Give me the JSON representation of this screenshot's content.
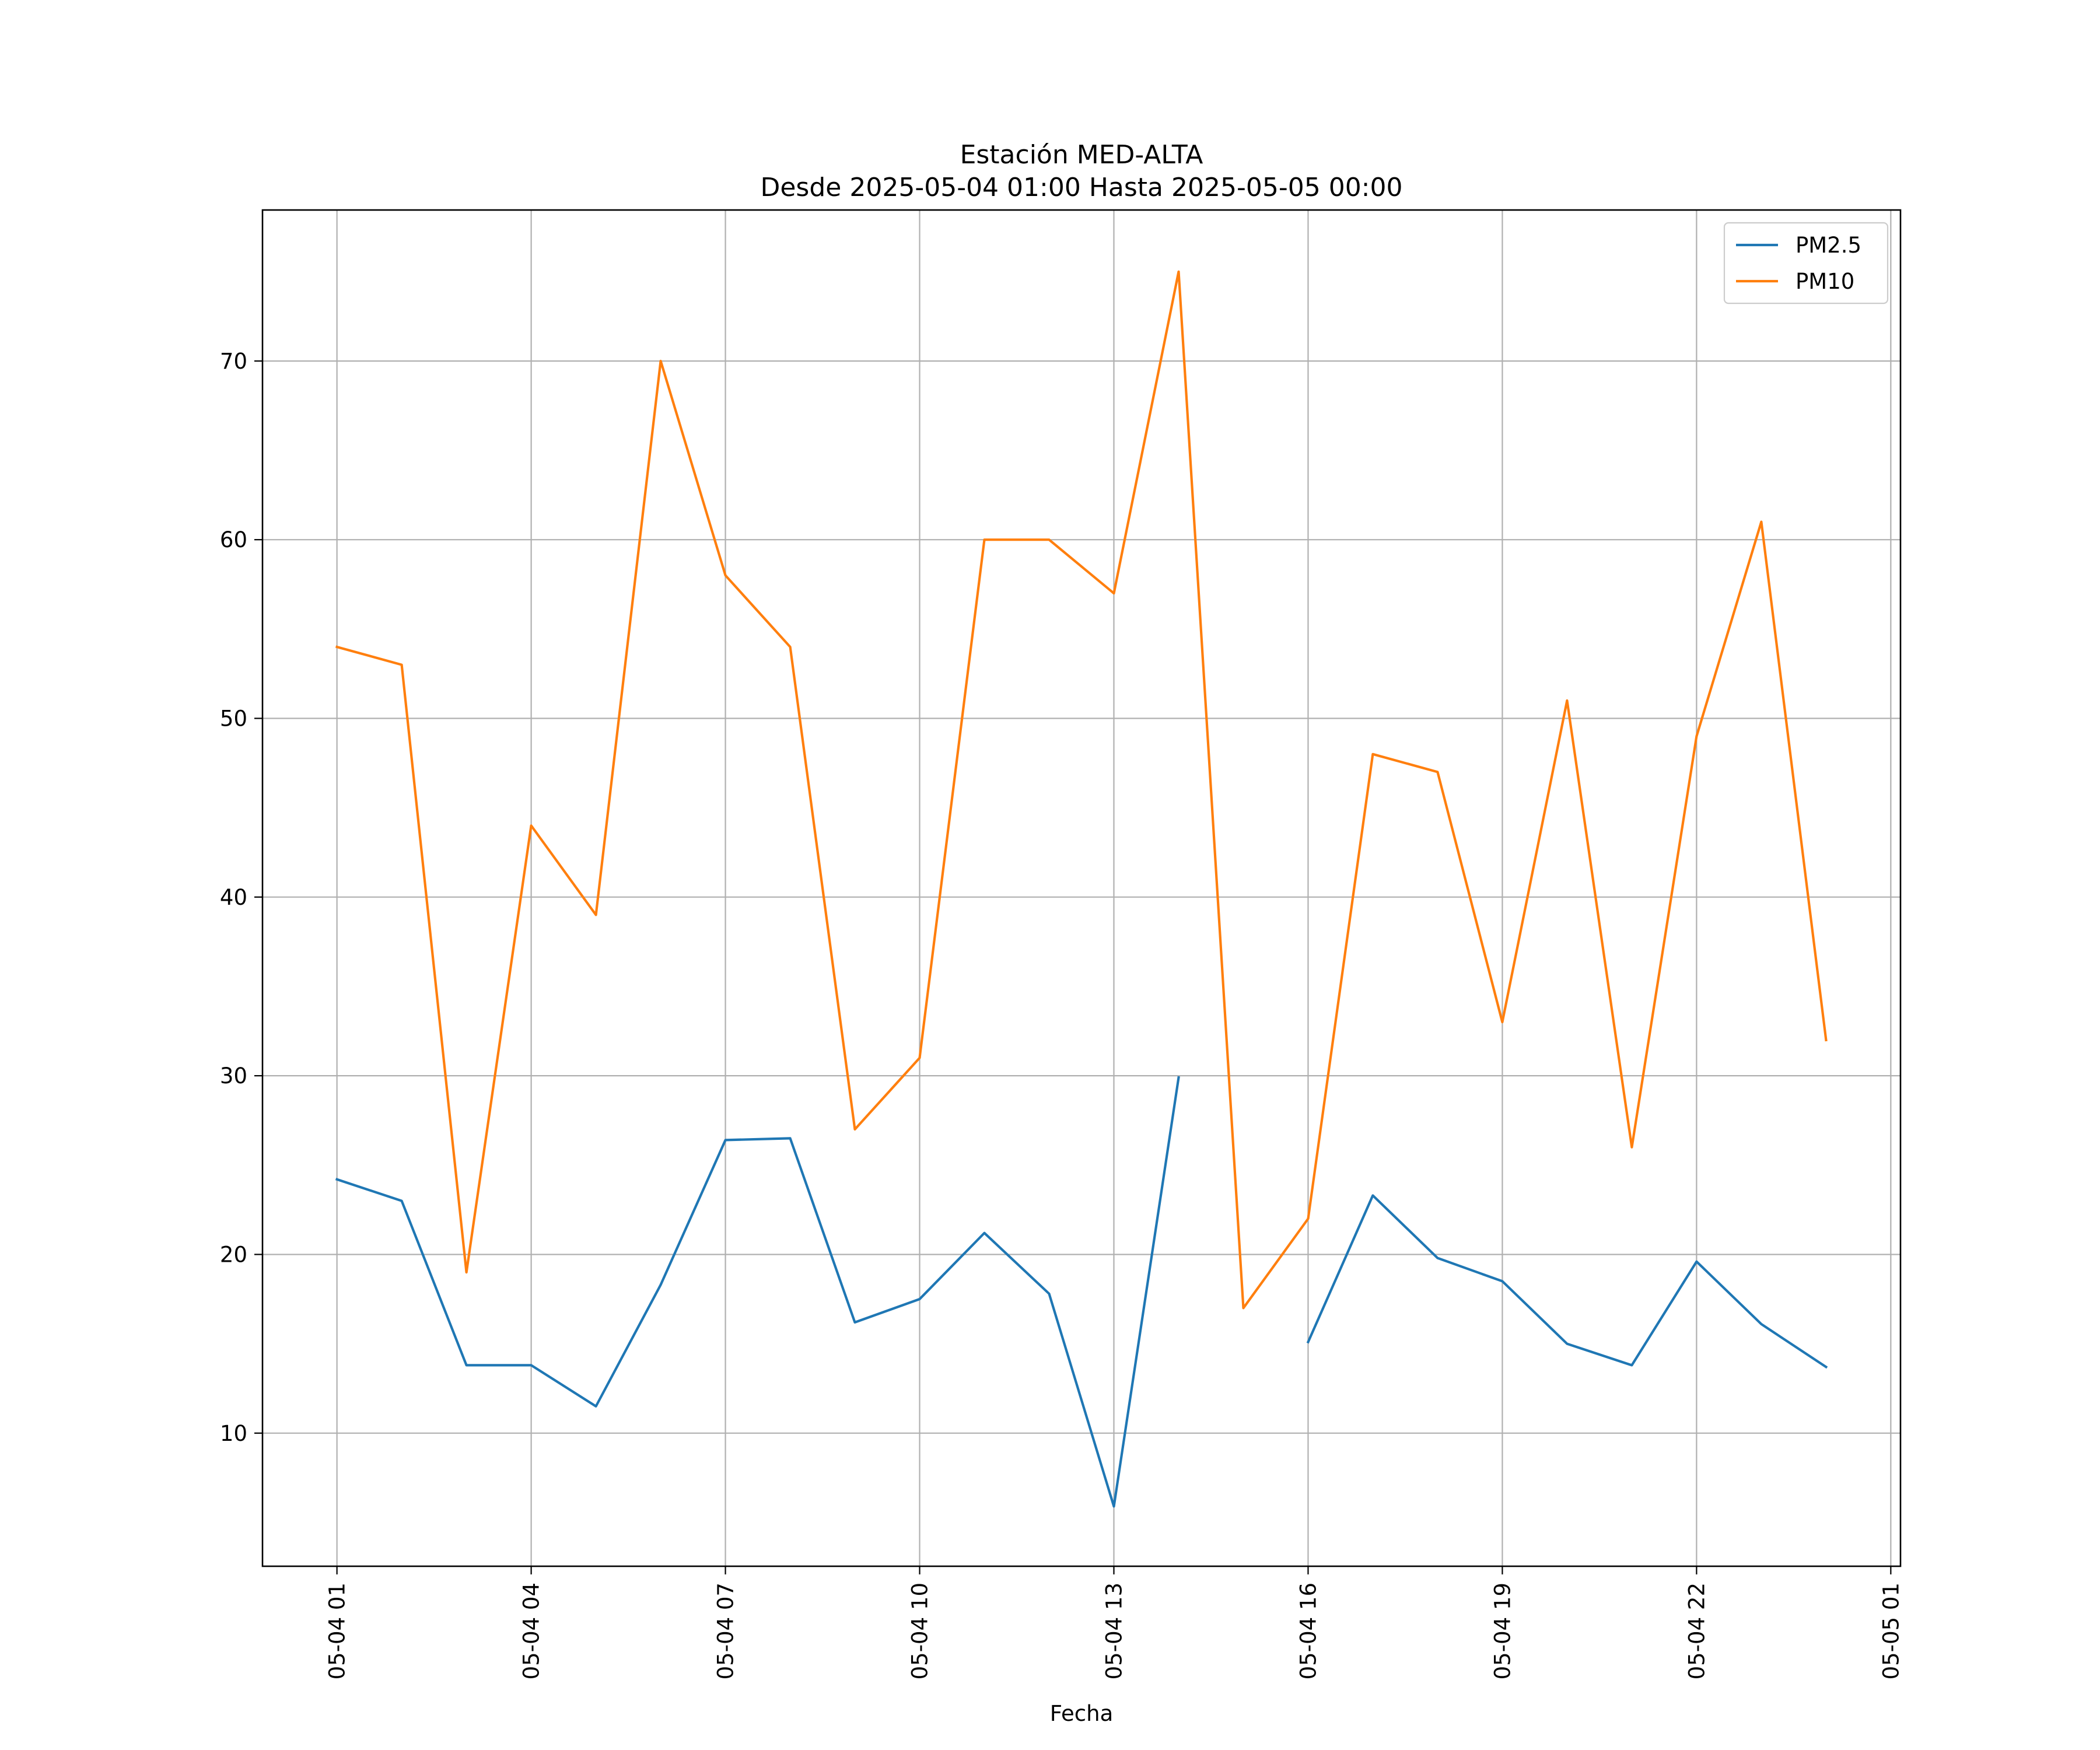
{
  "chart_data": {
    "type": "line",
    "title": "Estación MED-ALTA",
    "subtitle": "Desde 2025-05-04 01:00 Hasta 2025-05-05 00:00",
    "xlabel": "Fecha",
    "ylabel": "",
    "x": [
      "2025-05-04 01:00",
      "2025-05-04 02:00",
      "2025-05-04 03:00",
      "2025-05-04 04:00",
      "2025-05-04 05:00",
      "2025-05-04 06:00",
      "2025-05-04 07:00",
      "2025-05-04 08:00",
      "2025-05-04 09:00",
      "2025-05-04 10:00",
      "2025-05-04 11:00",
      "2025-05-04 12:00",
      "2025-05-04 13:00",
      "2025-05-04 14:00",
      "2025-05-04 15:00",
      "2025-05-04 16:00",
      "2025-05-04 17:00",
      "2025-05-04 18:00",
      "2025-05-04 19:00",
      "2025-05-04 20:00",
      "2025-05-04 21:00",
      "2025-05-04 22:00",
      "2025-05-04 23:00",
      "2025-05-05 00:00"
    ],
    "x_ticks": [
      {
        "value": "2025-05-04 01:00",
        "label": "05-04 01"
      },
      {
        "value": "2025-05-04 04:00",
        "label": "05-04 04"
      },
      {
        "value": "2025-05-04 07:00",
        "label": "05-04 07"
      },
      {
        "value": "2025-05-04 10:00",
        "label": "05-04 10"
      },
      {
        "value": "2025-05-04 13:00",
        "label": "05-04 13"
      },
      {
        "value": "2025-05-04 16:00",
        "label": "05-04 16"
      },
      {
        "value": "2025-05-04 19:00",
        "label": "05-04 19"
      },
      {
        "value": "2025-05-04 22:00",
        "label": "05-04 22"
      },
      {
        "value": "2025-05-05 01:00",
        "label": "05-05 01"
      }
    ],
    "xlim": [
      "2025-05-03 23:51",
      "2025-05-05 01:09"
    ],
    "y_ticks": [
      10,
      20,
      30,
      40,
      50,
      60,
      70
    ],
    "ylim": [
      2.55,
      78.45
    ],
    "grid": true,
    "legend_position": "top-right",
    "series": [
      {
        "name": "PM2.5",
        "color": "#1f77b4",
        "values": [
          24.2,
          23.0,
          13.8,
          13.8,
          11.5,
          18.3,
          26.4,
          26.5,
          16.2,
          17.5,
          21.2,
          17.8,
          5.9,
          29.9,
          null,
          15.1,
          23.3,
          19.8,
          18.5,
          15.0,
          13.8,
          19.6,
          16.1,
          13.7
        ]
      },
      {
        "name": "PM10",
        "color": "#ff7f0e",
        "values": [
          54,
          53,
          19,
          44,
          39,
          70,
          58,
          54,
          27,
          31,
          60,
          60,
          57,
          75,
          17,
          22,
          48,
          47,
          33,
          51,
          26,
          49,
          61,
          32
        ]
      }
    ]
  }
}
